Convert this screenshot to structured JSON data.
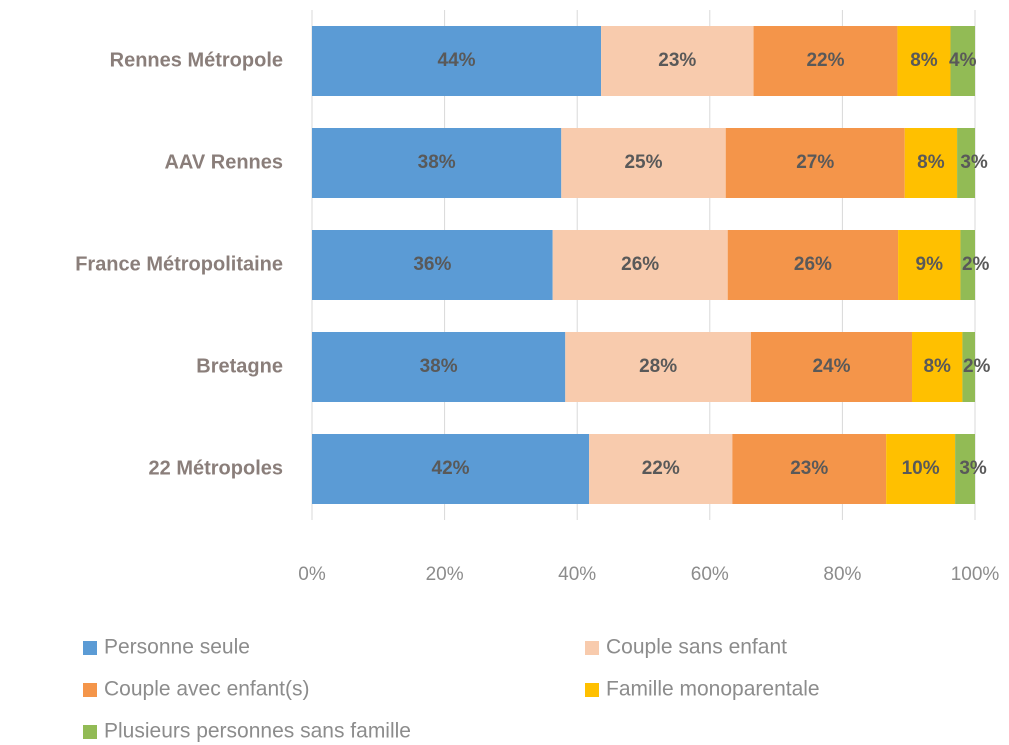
{
  "chart_data": {
    "type": "stacked-bar-horizontal",
    "categories": [
      "Rennes Métropole",
      "AAV Rennes",
      "France Métropolitaine",
      "Bretagne",
      "22 Métropoles"
    ],
    "series": [
      {
        "name": "Personne seule",
        "color": "#5b9bd5",
        "values": [
          43.6,
          37.6,
          36.3,
          38.2,
          41.8
        ],
        "value_labels": [
          "44%",
          "38%",
          "36%",
          "38%",
          "42%"
        ]
      },
      {
        "name": "Couple sans enfant",
        "color": "#f8cbad",
        "values": [
          23.0,
          24.8,
          26.4,
          28.0,
          21.6
        ],
        "value_labels": [
          "23%",
          "25%",
          "26%",
          "28%",
          "22%"
        ]
      },
      {
        "name": "Couple avec enfant(s)",
        "color": "#f4954a",
        "values": [
          21.7,
          27.0,
          25.7,
          24.3,
          23.2
        ],
        "value_labels": [
          "22%",
          "27%",
          "26%",
          "24%",
          "23%"
        ]
      },
      {
        "name": "Famille monoparentale",
        "color": "#ffc000",
        "values": [
          8.0,
          7.9,
          9.4,
          7.6,
          10.4
        ],
        "value_labels": [
          "8%",
          "8%",
          "9%",
          "8%",
          "10%"
        ]
      },
      {
        "name": "Plusieurs personnes sans famille",
        "color": "#92bb55",
        "values": [
          3.7,
          2.7,
          2.2,
          1.9,
          3.0
        ],
        "value_labels": [
          "4%",
          "3%",
          "2%",
          "2%",
          "3%"
        ]
      }
    ],
    "xlim": [
      0,
      100
    ],
    "xticks": [
      {
        "value": 0,
        "label": "0%"
      },
      {
        "value": 20,
        "label": "20%"
      },
      {
        "value": 40,
        "label": "40%"
      },
      {
        "value": 60,
        "label": "60%"
      },
      {
        "value": 80,
        "label": "80%"
      },
      {
        "value": 100,
        "label": "100%"
      }
    ],
    "grid": true
  }
}
